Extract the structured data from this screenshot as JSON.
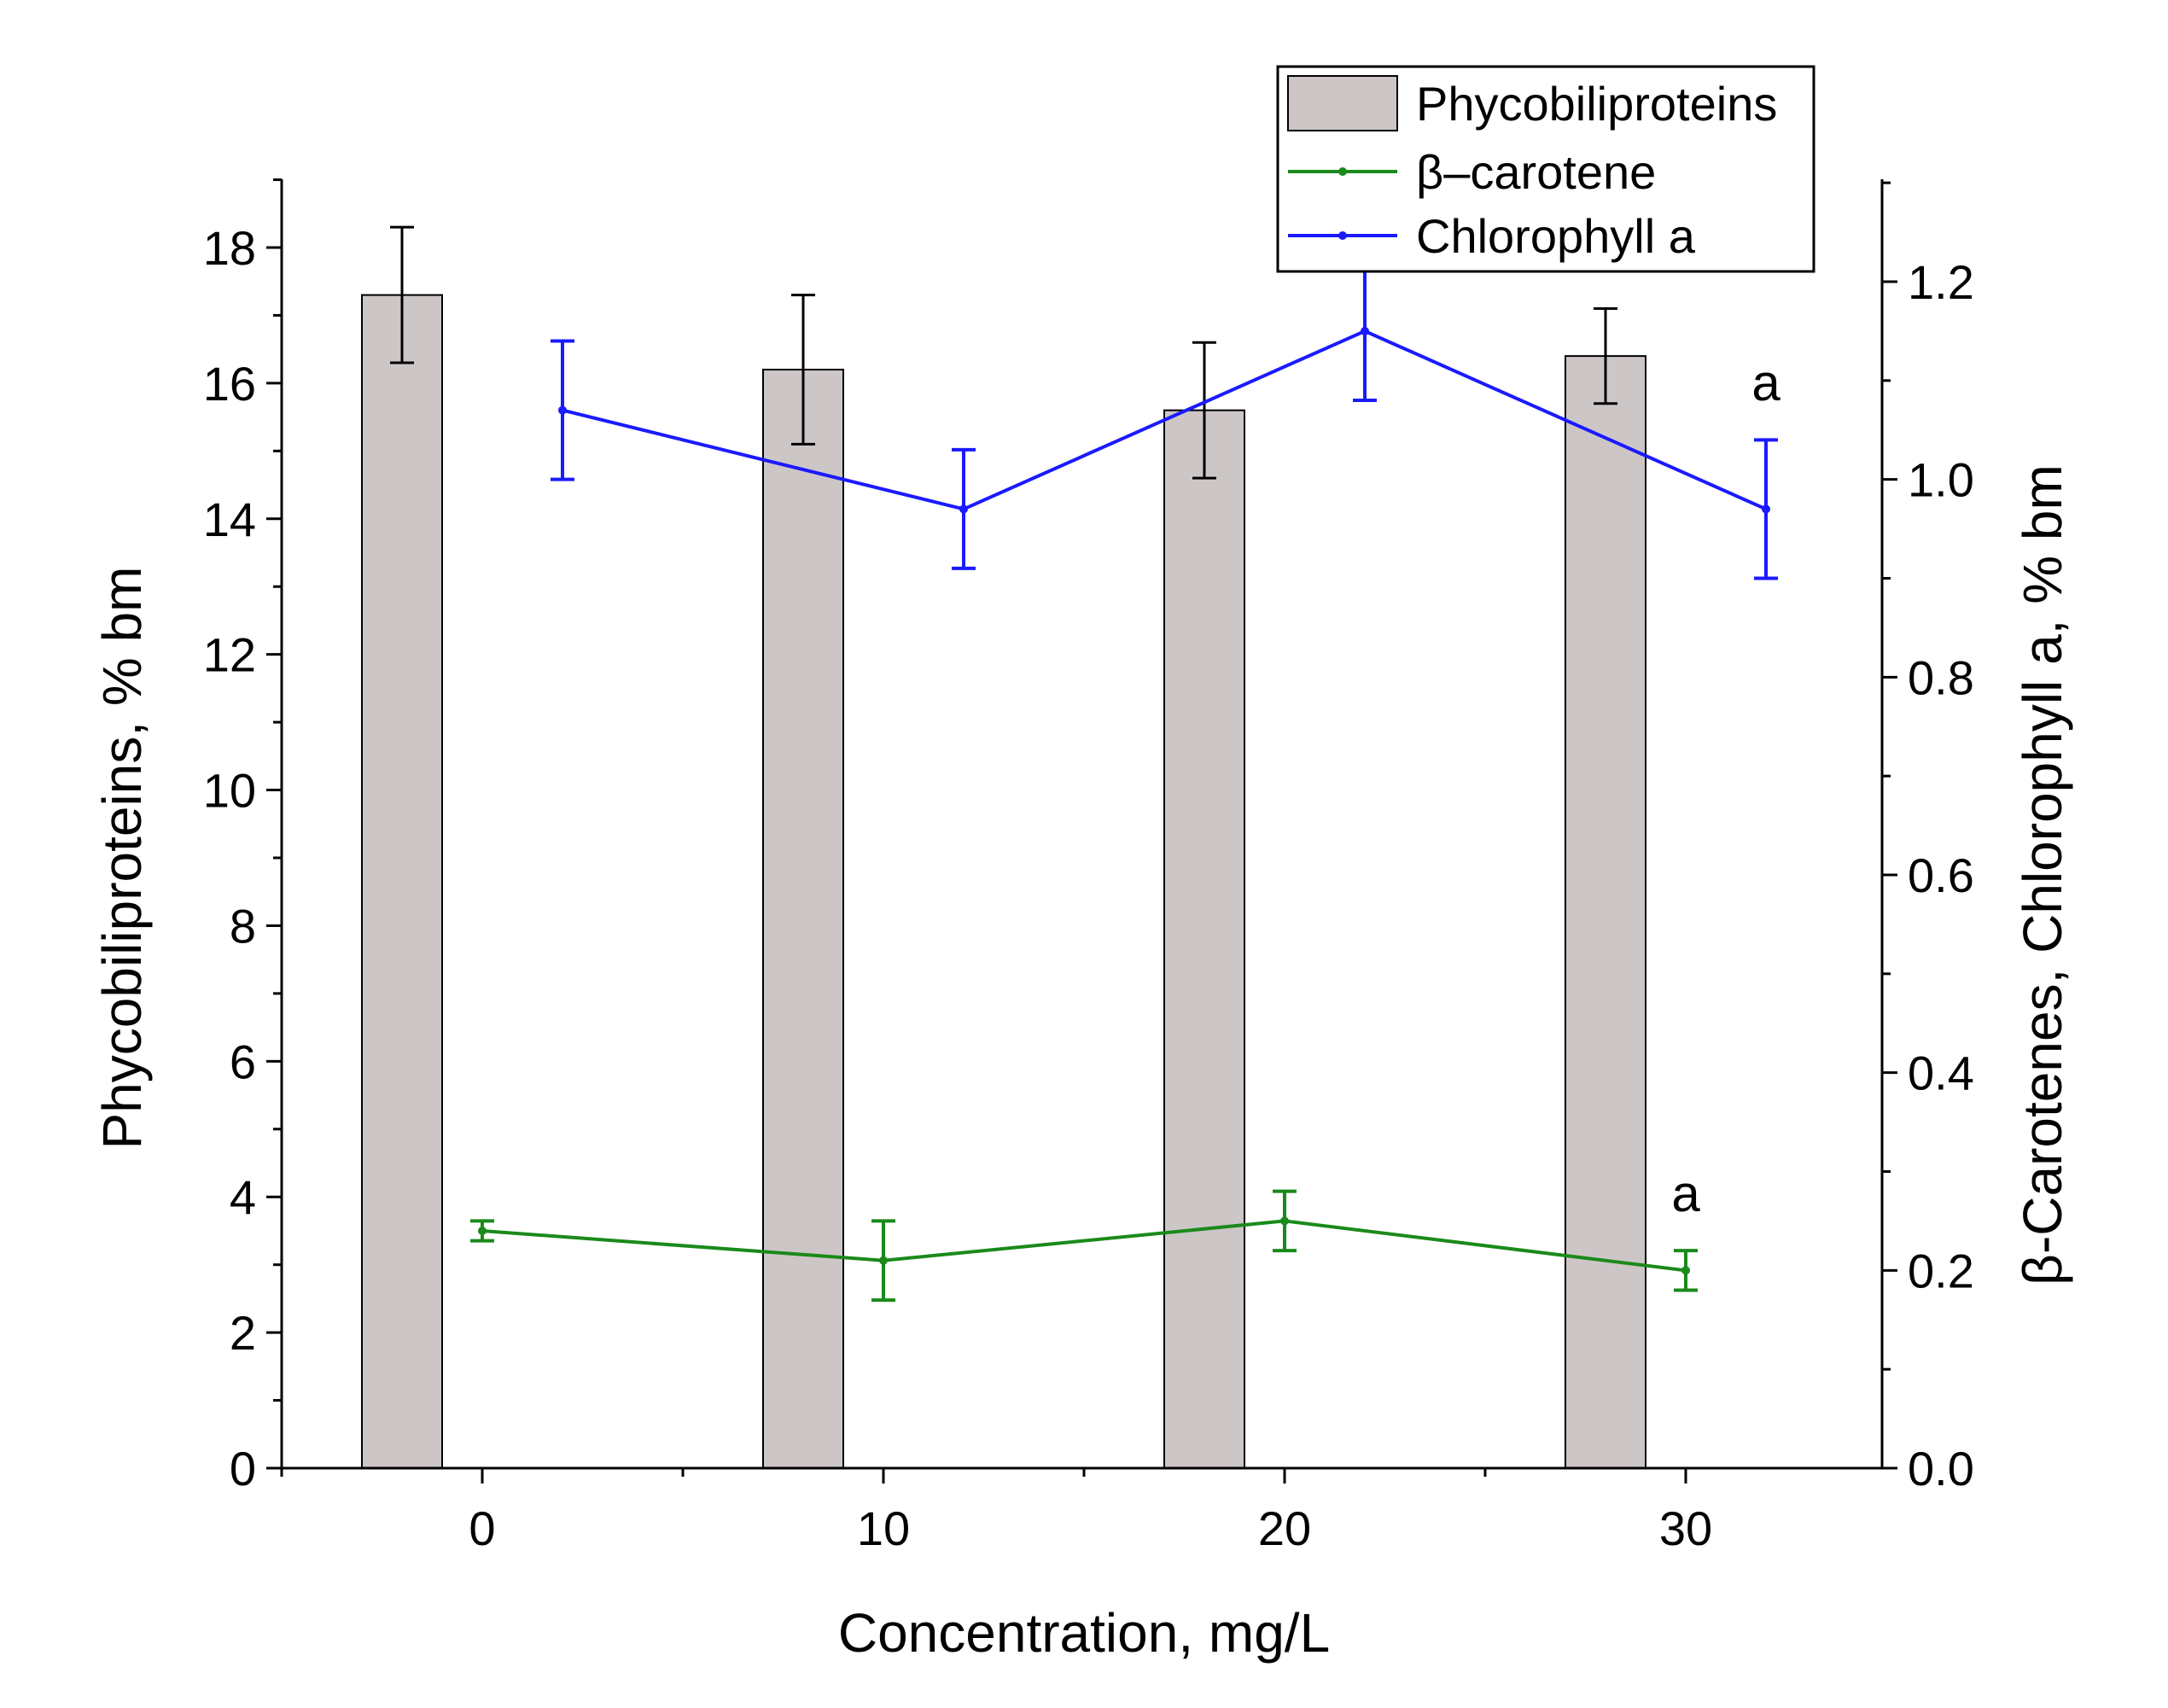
{
  "chart_data": {
    "type": "bar+line",
    "title": "",
    "xlabel": "Concentration, mg/L",
    "ylabel_left": "Phycobiliproteins, % bm",
    "ylabel_right": "β-Carotenes, Chlorophyll a, % bm",
    "x_ticks": [
      "0",
      "10",
      "20",
      "30"
    ],
    "x_range": [
      -5,
      35
    ],
    "y_left_ticks": [
      "0",
      "2",
      "4",
      "6",
      "8",
      "10",
      "12",
      "14",
      "16",
      "18"
    ],
    "y_left_range": [
      0,
      19
    ],
    "y_right_ticks": [
      "0.0",
      "0.2",
      "0.4",
      "0.6",
      "0.8",
      "1.0",
      "1.2"
    ],
    "y_right_range": [
      0,
      1.3
    ],
    "legend": {
      "position": "top-right",
      "entries": [
        "Phycobiliproteins",
        "β–carotene",
        "Chlorophyll a"
      ]
    },
    "series": [
      {
        "name": "Phycobiliproteins",
        "kind": "bar",
        "axis": "left",
        "color": "#cdc6c6",
        "x": [
          -2,
          8,
          18,
          28
        ],
        "values": [
          17.3,
          16.2,
          15.6,
          16.4
        ],
        "errors": [
          1.0,
          1.1,
          1.0,
          0.7
        ]
      },
      {
        "name": "β–carotene",
        "kind": "line",
        "axis": "right",
        "color": "#1a8a1a",
        "x": [
          0,
          10,
          20,
          30
        ],
        "values": [
          0.24,
          0.21,
          0.25,
          0.2
        ],
        "errors": [
          0.01,
          0.04,
          0.03,
          0.02
        ]
      },
      {
        "name": "Chlorophyll a",
        "kind": "line",
        "axis": "right",
        "color": "#1a1aff",
        "x": [
          2,
          12,
          22,
          32
        ],
        "values": [
          1.07,
          0.97,
          1.15,
          0.97
        ],
        "errors": [
          0.07,
          0.06,
          0.07,
          0.07
        ]
      }
    ],
    "annotations": [
      {
        "text": "a",
        "series": "Chlorophyll a",
        "x": 32,
        "y": 1.08
      },
      {
        "text": "a",
        "series": "β–carotene",
        "x": 30,
        "y": 0.26
      }
    ]
  }
}
